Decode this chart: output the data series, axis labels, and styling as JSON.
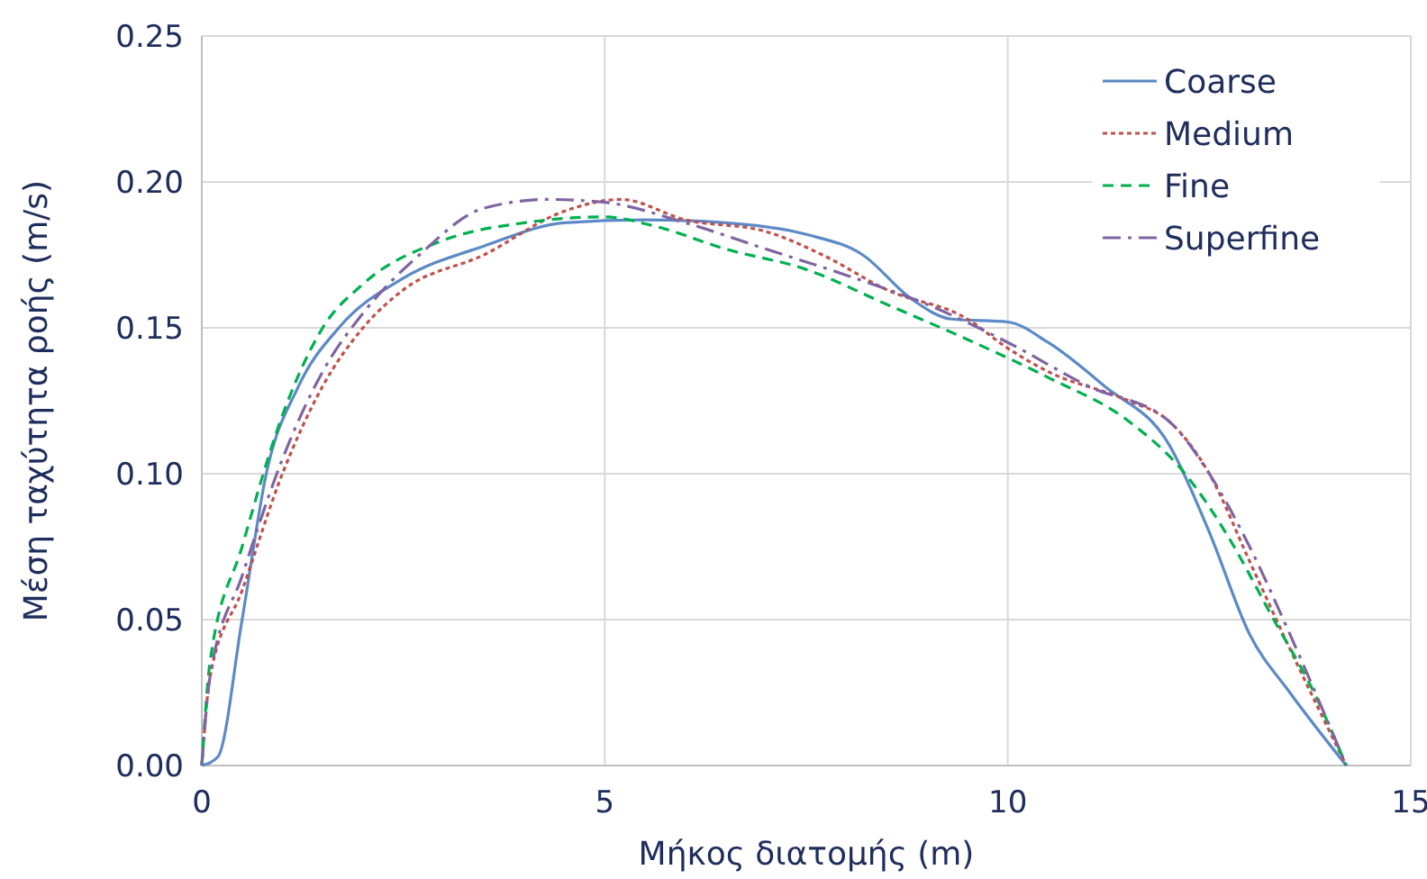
{
  "chart_data": {
    "type": "line",
    "xlabel": "Μήκος διατομής (m)",
    "ylabel": "Μέση ταχύτητα ροής (m/s)",
    "xlim": [
      0,
      15
    ],
    "xticks": [
      0,
      5,
      10,
      15
    ],
    "ylim": [
      0,
      0.25
    ],
    "yticks": [
      {
        "value": 0,
        "label": "0.00"
      },
      {
        "value": 0.05,
        "label": "0.05"
      },
      {
        "value": 0.1,
        "label": "0.10"
      },
      {
        "value": 0.15,
        "label": "0.15"
      },
      {
        "value": 0.2,
        "label": "0.20"
      },
      {
        "value": 0.25,
        "label": "0.25"
      }
    ],
    "grid": true,
    "legend": "top right",
    "marker": "none",
    "series": [
      {
        "name": "Coarse",
        "color": "#5b8ac6",
        "line_style": "solid",
        "x": [
          0,
          0.2,
          0.5,
          0.8,
          1.2,
          1.7,
          2.5,
          3.5,
          4.5,
          5.5,
          6.5,
          7.5,
          8.2,
          8.8,
          9.3,
          10,
          10.5,
          11.2,
          12,
          12.5,
          13,
          13.5,
          14.2
        ],
        "values": [
          0,
          0.003,
          0.05,
          0.1,
          0.13,
          0.15,
          0.167,
          0.178,
          0.186,
          0.187,
          0.186,
          0.182,
          0.175,
          0.16,
          0.153,
          0.152,
          0.145,
          0.13,
          0.11,
          0.08,
          0.045,
          0.025,
          0
        ]
      },
      {
        "name": "Medium",
        "color": "#c0504d",
        "line_style": "dotted",
        "x": [
          0,
          0.1,
          0.5,
          1,
          1.5,
          2,
          2.5,
          3.5,
          4.5,
          5.2,
          6,
          7,
          7.7,
          8.5,
          9.5,
          10,
          10.5,
          11.5,
          12,
          12.5,
          13,
          13.5,
          14.2
        ],
        "values": [
          0,
          0.03,
          0.06,
          0.1,
          0.13,
          0.15,
          0.163,
          0.175,
          0.19,
          0.194,
          0.187,
          0.183,
          0.175,
          0.163,
          0.153,
          0.143,
          0.135,
          0.125,
          0.118,
          0.1,
          0.07,
          0.04,
          0
        ]
      },
      {
        "name": "Fine",
        "color": "#00b050",
        "line_style": "dashed",
        "x": [
          0,
          0.1,
          0.5,
          1,
          1.5,
          2,
          3,
          4,
          5,
          5.6,
          6.5,
          7.5,
          8.5,
          9.5,
          10.5,
          11.5,
          12.2,
          12.7,
          13.3,
          13.8,
          14.2
        ],
        "values": [
          0,
          0.035,
          0.075,
          0.12,
          0.15,
          0.165,
          0.18,
          0.186,
          0.188,
          0.185,
          0.177,
          0.17,
          0.158,
          0.146,
          0.133,
          0.118,
          0.1,
          0.08,
          0.05,
          0.025,
          0
        ]
      },
      {
        "name": "Superfine",
        "color": "#8064a2",
        "line_style": "dashdot",
        "x": [
          0,
          0.1,
          0.5,
          1,
          1.5,
          2,
          2.7,
          3.5,
          4.3,
          5,
          6,
          7,
          8,
          9,
          10,
          11,
          12,
          12.5,
          13,
          13.5,
          14.2
        ],
        "values": [
          0,
          0.03,
          0.065,
          0.105,
          0.135,
          0.155,
          0.175,
          0.191,
          0.194,
          0.193,
          0.186,
          0.177,
          0.168,
          0.158,
          0.145,
          0.13,
          0.118,
          0.1,
          0.075,
          0.045,
          0
        ]
      }
    ]
  }
}
